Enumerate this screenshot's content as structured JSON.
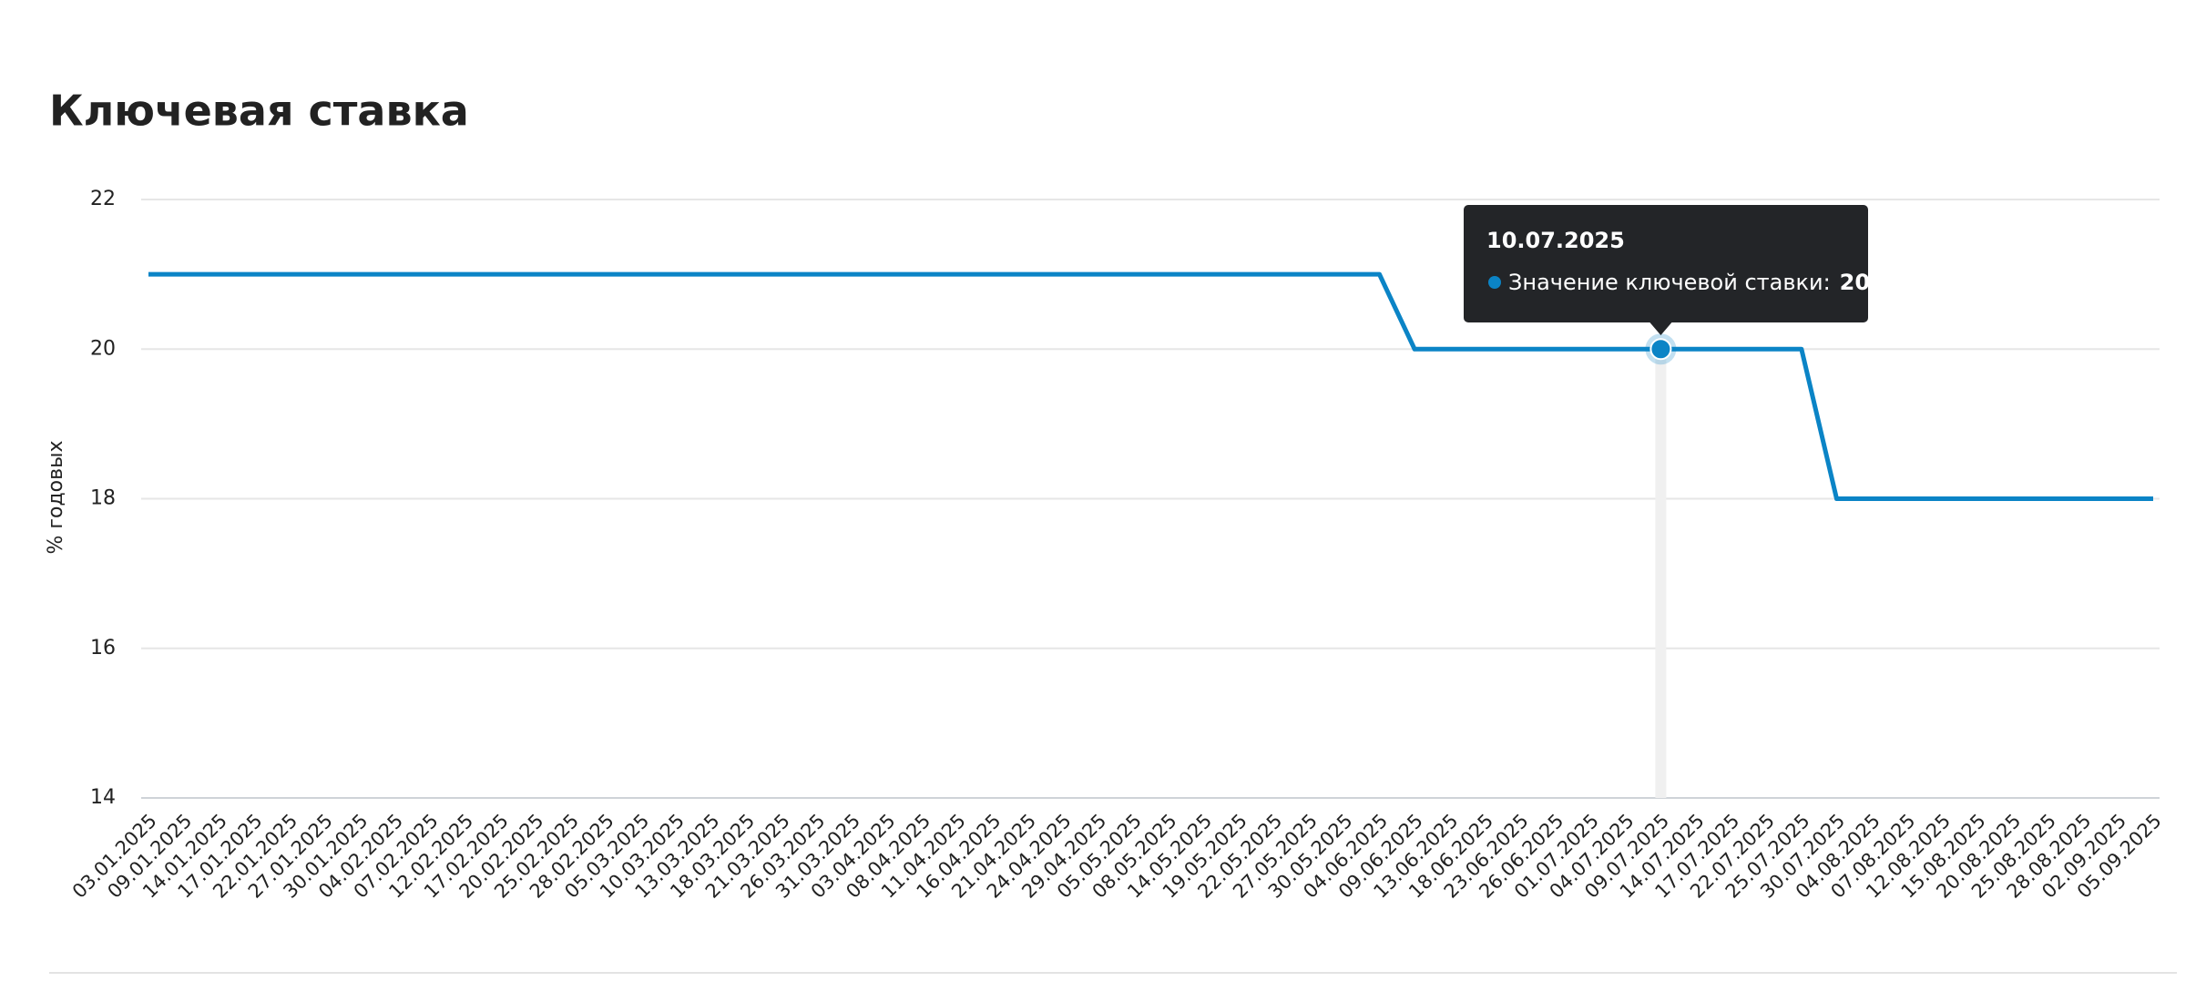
{
  "chart_data": {
    "type": "line",
    "title": "Ключевая ставка",
    "ylabel": "% годовых",
    "categories": [
      "03.01.2025",
      "09.01.2025",
      "14.01.2025",
      "17.01.2025",
      "22.01.2025",
      "27.01.2025",
      "30.01.2025",
      "04.02.2025",
      "07.02.2025",
      "12.02.2025",
      "17.02.2025",
      "20.02.2025",
      "25.02.2025",
      "28.02.2025",
      "05.03.2025",
      "10.03.2025",
      "13.03.2025",
      "18.03.2025",
      "21.03.2025",
      "26.03.2025",
      "31.03.2025",
      "03.04.2025",
      "08.04.2025",
      "11.04.2025",
      "16.04.2025",
      "21.04.2025",
      "24.04.2025",
      "29.04.2025",
      "05.05.2025",
      "08.05.2025",
      "14.05.2025",
      "19.05.2025",
      "22.05.2025",
      "27.05.2025",
      "30.05.2025",
      "04.06.2025",
      "09.06.2025",
      "13.06.2025",
      "18.06.2025",
      "23.06.2025",
      "26.06.2025",
      "01.07.2025",
      "04.07.2025",
      "09.07.2025",
      "14.07.2025",
      "17.07.2025",
      "22.07.2025",
      "25.07.2025",
      "30.07.2025",
      "04.08.2025",
      "07.08.2025",
      "12.08.2025",
      "15.08.2025",
      "20.08.2025",
      "25.08.2025",
      "28.08.2025",
      "02.09.2025",
      "05.09.2025"
    ],
    "series": [
      {
        "color": "#0b84c6",
        "values": [
          21,
          21,
          21,
          21,
          21,
          21,
          21,
          21,
          21,
          21,
          21,
          21,
          21,
          21,
          21,
          21,
          21,
          21,
          21,
          21,
          21,
          21,
          21,
          21,
          21,
          21,
          21,
          21,
          21,
          21,
          21,
          21,
          21,
          21,
          21,
          21,
          20,
          20,
          20,
          20,
          20,
          20,
          20,
          20,
          20,
          20,
          20,
          20,
          18,
          18,
          18,
          18,
          18,
          18,
          18,
          18,
          18,
          18
        ]
      }
    ],
    "ylim": [
      14,
      22
    ],
    "yticks": [
      14,
      16,
      18,
      20,
      22
    ],
    "grid": true,
    "tooltip": {
      "date": "10.07.2025",
      "label": "Значение ключевой ставки:",
      "value": 20
    }
  }
}
